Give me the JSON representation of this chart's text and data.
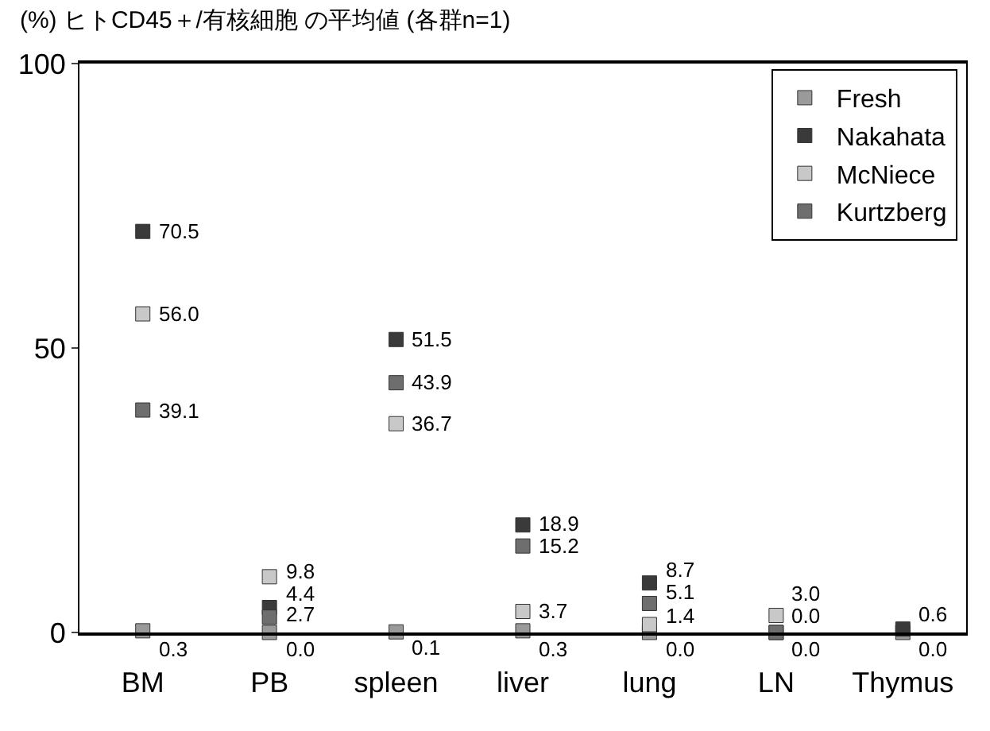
{
  "chart_data": {
    "type": "scatter",
    "title": "(%) ヒトCD45＋/有核細胞 の平均値 (各群n=1)",
    "categories": [
      "BM",
      "PB",
      "spleen",
      "liver",
      "lung",
      "LN",
      "Thymus"
    ],
    "series": [
      {
        "name": "Fresh",
        "color": "#9a9a9a",
        "values": [
          0.3,
          0.0,
          0.1,
          0.3,
          0.0,
          0.0,
          0.0
        ],
        "value_labels": [
          "0.3",
          "0.0",
          "0.1",
          "0.3",
          "0.0",
          "0.0",
          "0.0"
        ]
      },
      {
        "name": "Nakahata",
        "color": "#3a3a3a",
        "values": [
          70.5,
          4.4,
          51.5,
          18.9,
          8.7,
          null,
          0.6
        ],
        "value_labels": [
          "70.5",
          "4.4",
          "51.5",
          "18.9",
          "8.7",
          null,
          "0.6"
        ]
      },
      {
        "name": "McNiece",
        "color": "#c8c8c8",
        "values": [
          56.0,
          9.8,
          36.7,
          3.7,
          1.4,
          3.0,
          null
        ],
        "value_labels": [
          "56.0",
          "9.8",
          "36.7",
          "3.7",
          "1.4",
          "3.0",
          null
        ]
      },
      {
        "name": "Kurtzberg",
        "color": "#6e6e6e",
        "values": [
          39.1,
          2.7,
          43.9,
          15.2,
          5.1,
          0.0,
          null
        ],
        "value_labels": [
          "39.1",
          "2.7",
          "43.9",
          "15.2",
          "5.1",
          "0.0",
          null
        ]
      }
    ],
    "ylim": [
      0,
      100
    ],
    "yticks": [
      0,
      50,
      100
    ],
    "grid": false,
    "legend": "top right",
    "marker": "square"
  }
}
